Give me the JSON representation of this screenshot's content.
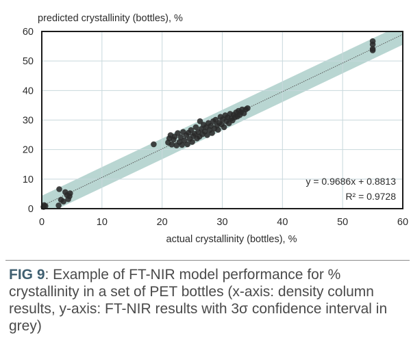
{
  "chart_data": {
    "type": "scatter",
    "title": "",
    "xlabel": "actual crystallinity (bottles), %",
    "ylabel": "predicted crystallinity (bottles), %",
    "xlim": [
      0,
      60
    ],
    "ylim": [
      0,
      60
    ],
    "xticks": [
      0,
      10,
      20,
      30,
      40,
      50,
      60
    ],
    "yticks": [
      0,
      10,
      20,
      30,
      40,
      50,
      60
    ],
    "grid": true,
    "regression": {
      "slope": 0.9686,
      "intercept": 0.8813,
      "r2": 0.9728
    },
    "equation_label": "y = 0.9686x + 0.8813",
    "r2_label": "R² = 0.9728",
    "confidence_band_halfwidth": 3.5,
    "colors": {
      "band": "#b9d6d2",
      "point": "#2a2a2a",
      "fit_line": "#555555",
      "grid": "#c8d8dc",
      "frame": "#1a1a1a"
    },
    "points": [
      [
        0.3,
        0.6
      ],
      [
        0.4,
        1.2
      ],
      [
        0.6,
        0.9
      ],
      [
        2.8,
        1.1
      ],
      [
        2.9,
        6.6
      ],
      [
        3.2,
        3.0
      ],
      [
        3.6,
        2.4
      ],
      [
        3.9,
        5.6
      ],
      [
        4.2,
        4.6
      ],
      [
        4.4,
        3.2
      ],
      [
        4.6,
        4.2
      ],
      [
        4.7,
        5.2
      ],
      [
        18.6,
        21.8
      ],
      [
        21.0,
        22.4
      ],
      [
        21.2,
        23.8
      ],
      [
        21.4,
        24.9
      ],
      [
        21.6,
        21.7
      ],
      [
        21.9,
        23.4
      ],
      [
        22.1,
        24.4
      ],
      [
        22.4,
        21.4
      ],
      [
        22.6,
        25.6
      ],
      [
        22.9,
        22.6
      ],
      [
        23.1,
        24.2
      ],
      [
        23.3,
        21.6
      ],
      [
        23.5,
        26.0
      ],
      [
        23.7,
        23.1
      ],
      [
        24.0,
        24.9
      ],
      [
        24.2,
        21.8
      ],
      [
        24.4,
        25.7
      ],
      [
        24.6,
        23.6
      ],
      [
        24.8,
        26.6
      ],
      [
        25.0,
        22.6
      ],
      [
        25.2,
        24.6
      ],
      [
        25.4,
        25.4
      ],
      [
        25.6,
        27.6
      ],
      [
        25.8,
        23.8
      ],
      [
        26.0,
        25.9
      ],
      [
        26.2,
        24.4
      ],
      [
        26.3,
        29.6
      ],
      [
        26.5,
        27.0
      ],
      [
        26.7,
        25.2
      ],
      [
        26.9,
        28.4
      ],
      [
        27.1,
        26.1
      ],
      [
        27.3,
        27.6
      ],
      [
        27.5,
        24.9
      ],
      [
        27.7,
        29.0
      ],
      [
        27.9,
        26.6
      ],
      [
        28.1,
        28.0
      ],
      [
        28.3,
        25.6
      ],
      [
        28.5,
        29.6
      ],
      [
        28.7,
        27.1
      ],
      [
        28.9,
        30.1
      ],
      [
        29.1,
        28.2
      ],
      [
        29.3,
        26.7
      ],
      [
        29.5,
        29.1
      ],
      [
        29.7,
        31.1
      ],
      [
        29.9,
        28.5
      ],
      [
        30.1,
        30.3
      ],
      [
        30.3,
        27.6
      ],
      [
        30.5,
        31.6
      ],
      [
        30.7,
        29.6
      ],
      [
        30.9,
        30.9
      ],
      [
        31.1,
        28.9
      ],
      [
        31.3,
        32.1
      ],
      [
        31.5,
        30.5
      ],
      [
        31.7,
        29.9
      ],
      [
        31.9,
        31.8
      ],
      [
        32.1,
        30.9
      ],
      [
        32.3,
        32.6
      ],
      [
        32.5,
        31.2
      ],
      [
        32.7,
        33.1
      ],
      [
        32.9,
        31.7
      ],
      [
        33.1,
        32.6
      ],
      [
        33.3,
        33.6
      ],
      [
        33.6,
        32.3
      ],
      [
        33.9,
        33.6
      ],
      [
        34.2,
        34.0
      ],
      [
        55.0,
        53.6
      ],
      [
        55.0,
        54.1
      ],
      [
        55.0,
        55.6
      ],
      [
        55.0,
        56.7
      ]
    ]
  },
  "caption": {
    "label": "FIG 9",
    "text": ": Example of FT-NIR model performance for % crystallinity in a set of PET bottles (x-axis: density column results, y-axis: FT-NIR results with 3σ confidence interval in grey)"
  }
}
